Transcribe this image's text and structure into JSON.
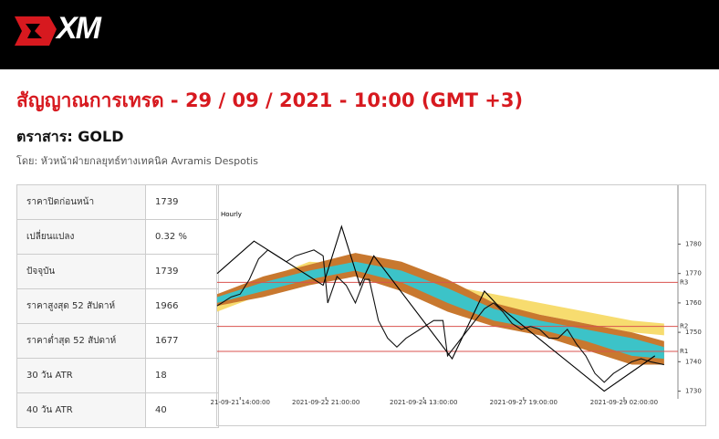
{
  "header": {
    "logo": "XM"
  },
  "title": "สัญญาณการเทรด - 29 / 09 / 2021 - 10:00 (GMT +3)",
  "instrument": "ตราสาร: GOLD",
  "author": "โดย: หัวหน้าฝ่ายกลยุทธ์ทางเทคนิค Avramis Despotis",
  "table": {
    "rows": [
      [
        "ราคาปิดก่อนหน้า",
        "1739"
      ],
      [
        "เปลี่ยนแปลง",
        "0.32 %"
      ],
      [
        "ปัจจุบัน",
        "1739"
      ],
      [
        "ราคาสูงสุด 52 สัปดาห์",
        "1966"
      ],
      [
        "ราคาต่ำสุด 52 สัปดาห์",
        "1677"
      ],
      [
        "30 วัน ATR",
        "18"
      ],
      [
        "40 วัน ATR",
        "40"
      ]
    ]
  },
  "chart_data": {
    "type": "line",
    "title": "Hourly",
    "xlim": [
      0,
      100
    ],
    "ylim": [
      1728,
      1800
    ],
    "xticks": [
      {
        "value": 5,
        "label": "21-09-21 14:00:00"
      },
      {
        "value": 23.6,
        "label": "2021-09-22 21:00:00"
      },
      {
        "value": 44.8,
        "label": "2021-09-24 13:00:00"
      },
      {
        "value": 66.5,
        "label": "2021-09-27 19:00:00"
      },
      {
        "value": 88.3,
        "label": "2021-09-29 02:00:00"
      }
    ],
    "yticks": [
      1730,
      1740,
      1750,
      1760,
      1770,
      1780
    ],
    "levels": [
      {
        "value": 1767,
        "label": "R3"
      },
      {
        "value": 1752,
        "label": "R2"
      },
      {
        "value": 1743.5,
        "label": "R1"
      }
    ],
    "level_color": "#d9534f",
    "areas": [
      {
        "color": "#f7dc6f",
        "x": [
          0,
          10,
          20,
          30,
          40,
          50,
          60,
          70,
          80,
          90,
          97
        ],
        "upper": [
          1760,
          1768,
          1774,
          1773,
          1770,
          1766,
          1763,
          1760,
          1757,
          1754,
          1753
        ],
        "lower": [
          1757,
          1763,
          1770,
          1770,
          1767,
          1762,
          1759,
          1756,
          1753,
          1750,
          1749
        ]
      },
      {
        "color": "#c8782f",
        "x": [
          0,
          10,
          20,
          30,
          40,
          50,
          60,
          70,
          80,
          90,
          97
        ],
        "upper": [
          1763,
          1769,
          1773,
          1777,
          1774,
          1768,
          1760,
          1756,
          1753,
          1750,
          1747
        ],
        "lower": [
          1759,
          1762,
          1766,
          1769,
          1764,
          1757,
          1752,
          1749,
          1744,
          1739,
          1739
        ]
      },
      {
        "color": "#3cc3c8",
        "x": [
          0,
          10,
          20,
          30,
          40,
          50,
          60,
          70,
          80,
          90,
          97
        ],
        "upper": [
          1762,
          1767,
          1771,
          1774,
          1771,
          1765,
          1758,
          1754,
          1751,
          1748,
          1745
        ],
        "lower": [
          1760,
          1764,
          1768,
          1771,
          1767,
          1760,
          1754,
          1751,
          1747,
          1742,
          1741
        ]
      }
    ],
    "series": [
      {
        "color": "#111111",
        "x": [
          0,
          3,
          5,
          7,
          9,
          11,
          13,
          15,
          17,
          19,
          21,
          23,
          24,
          26,
          28,
          30,
          32,
          33,
          35,
          37,
          39,
          41,
          43,
          45,
          47,
          49,
          50,
          52,
          54,
          56,
          58,
          60,
          62,
          64,
          66,
          68,
          70,
          72,
          74,
          76,
          78,
          80,
          82,
          84,
          86,
          88,
          90,
          92,
          94,
          97
        ],
        "values": [
          1759,
          1762,
          1763,
          1768,
          1775,
          1778,
          1776,
          1774,
          1776,
          1777,
          1778,
          1776,
          1760,
          1769,
          1766,
          1760,
          1768,
          1768,
          1754,
          1748,
          1745,
          1748,
          1750,
          1752,
          1754,
          1754,
          1742,
          1746,
          1750,
          1754,
          1758,
          1760,
          1757,
          1753,
          1751,
          1752,
          1751,
          1748,
          1748,
          1751,
          1746,
          1742,
          1736,
          1733,
          1736,
          1738,
          1740,
          1741,
          1740,
          1739
        ]
      },
      {
        "color": "#000000",
        "x": [
          0,
          8,
          23,
          27,
          31,
          34,
          51,
          58,
          61,
          84,
          95
        ],
        "values": [
          1770,
          1781,
          1766,
          1786,
          1766,
          1776,
          1741,
          1764,
          1759,
          1730,
          1742
        ]
      }
    ]
  }
}
